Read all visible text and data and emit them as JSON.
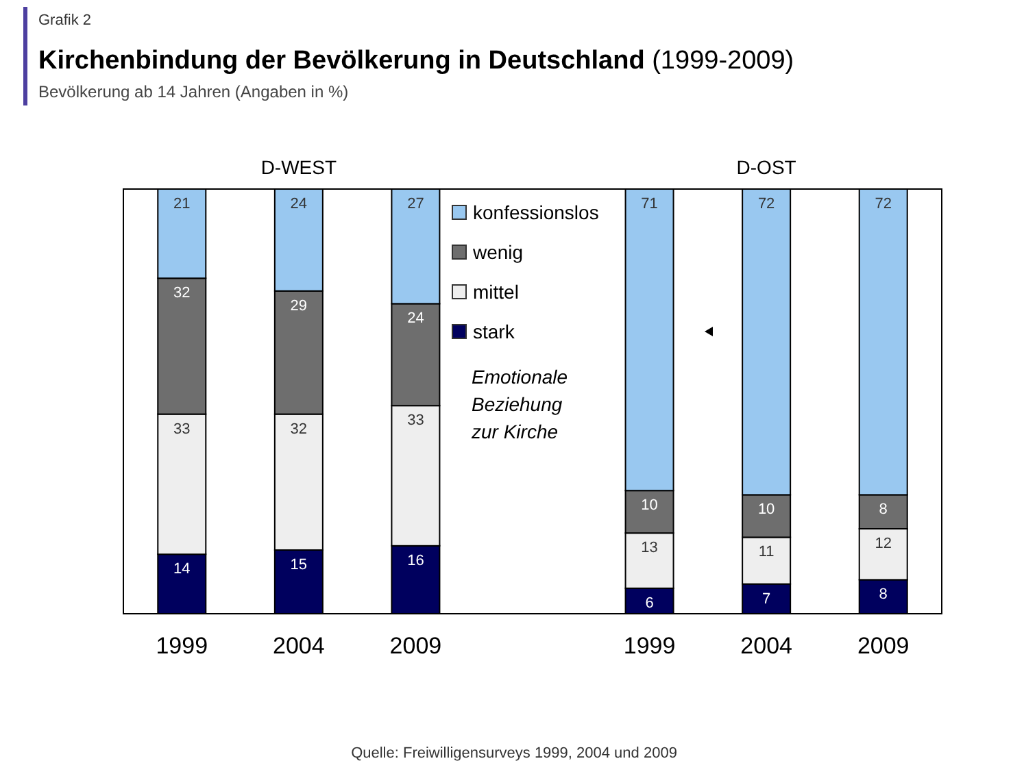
{
  "chart_data": {
    "type": "bar",
    "stacked": true,
    "title": "Kirchenbindung der Bevölkerung in Deutschland (1999-2009)",
    "subtitle": "Bevölkerung ab 14 Jahren (Angaben in %)",
    "annotations": [
      "Grafik 2",
      "D-WEST",
      "D-OST",
      "Quelle: Freiwilligensurveys 1999, 2004 und 2009"
    ],
    "legend_title": "Emotionale Beziehung zur Kirche",
    "categories": [
      "1999",
      "2004",
      "2009",
      null,
      "1999",
      "2004",
      "2009"
    ],
    "series": [
      {
        "name": "stark",
        "color": "#00005e",
        "values": [
          14,
          15,
          16,
          null,
          6,
          7,
          8
        ]
      },
      {
        "name": "mittel",
        "color": "#eeeeee",
        "values": [
          33,
          32,
          33,
          null,
          13,
          11,
          12
        ]
      },
      {
        "name": "wenig",
        "color": "#6e6e6e",
        "values": [
          32,
          29,
          24,
          null,
          10,
          10,
          8
        ]
      },
      {
        "name": "konfessionslos",
        "color": "#99c8f0",
        "values": [
          21,
          24,
          27,
          null,
          71,
          72,
          72
        ]
      }
    ],
    "ylim": [
      0,
      100
    ],
    "tick_labels": "x",
    "data_labels": true,
    "legend": "top"
  }
}
